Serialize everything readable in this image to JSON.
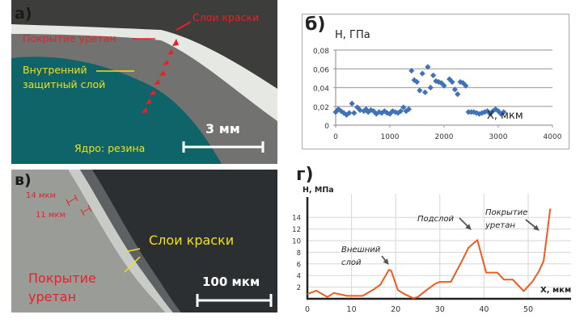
{
  "panels": {
    "a": {
      "letter": "а)",
      "labels": {
        "paint_layers": "Слои краски",
        "urethane_coating": "Покрытие уретан",
        "inner_layer_1": "Внутренний",
        "inner_layer_2": "защитный слой",
        "core": "Ядро: резина"
      },
      "scale_bar": "3 мм",
      "colors": {
        "background": "#3d3d3b",
        "core": "#0f6468",
        "inner_layer": "#6f706e",
        "coating": "#e9ebe6",
        "red_label": "#e8202a",
        "yellow_label": "#f1e21a"
      }
    },
    "c": {
      "letter": "в)",
      "labels": {
        "thickness_1": "14 мкм",
        "thickness_2": "11 мкм",
        "paint_layers": "Слои краски",
        "urethane_1": "Покрытие",
        "urethane_2": "уретан"
      },
      "scale_bar": "100 мкм"
    }
  },
  "chart_data": [
    {
      "id": "б",
      "type": "scatter",
      "title": "б)",
      "ylabel": "H, ГПа",
      "xlabel": "X, мкм",
      "xlim": [
        0,
        4000
      ],
      "ylim": [
        0,
        0.08
      ],
      "x_ticks": [
        "0",
        "1000",
        "2000",
        "3000",
        "4000"
      ],
      "y_ticks": [
        "0",
        "0,02",
        "0,04",
        "0,06",
        "0,08"
      ],
      "grid": "horizontal",
      "marker": "diamond",
      "color": "#3f72b6",
      "points": [
        [
          0,
          0.014
        ],
        [
          50,
          0.017
        ],
        [
          100,
          0.015
        ],
        [
          150,
          0.013
        ],
        [
          200,
          0.011
        ],
        [
          250,
          0.013
        ],
        [
          300,
          0.023
        ],
        [
          340,
          0.013
        ],
        [
          400,
          0.019
        ],
        [
          450,
          0.016
        ],
        [
          520,
          0.015
        ],
        [
          560,
          0.017
        ],
        [
          600,
          0.014
        ],
        [
          650,
          0.016
        ],
        [
          700,
          0.015
        ],
        [
          750,
          0.012
        ],
        [
          800,
          0.014
        ],
        [
          850,
          0.013
        ],
        [
          900,
          0.015
        ],
        [
          950,
          0.013
        ],
        [
          1000,
          0.012
        ],
        [
          1050,
          0.015
        ],
        [
          1100,
          0.014
        ],
        [
          1150,
          0.013
        ],
        [
          1200,
          0.015
        ],
        [
          1250,
          0.019
        ],
        [
          1300,
          0.015
        ],
        [
          1350,
          0.017
        ],
        [
          1400,
          0.058
        ],
        [
          1450,
          0.048
        ],
        [
          1500,
          0.046
        ],
        [
          1550,
          0.037
        ],
        [
          1600,
          0.055
        ],
        [
          1650,
          0.035
        ],
        [
          1700,
          0.062
        ],
        [
          1750,
          0.04
        ],
        [
          1800,
          0.053
        ],
        [
          1850,
          0.047
        ],
        [
          1900,
          0.046
        ],
        [
          1950,
          0.045
        ],
        [
          2000,
          0.042
        ],
        [
          2100,
          0.049
        ],
        [
          2150,
          0.046
        ],
        [
          2200,
          0.038
        ],
        [
          2250,
          0.033
        ],
        [
          2300,
          0.046
        ],
        [
          2350,
          0.045
        ],
        [
          2400,
          0.042
        ],
        [
          2450,
          0.014
        ],
        [
          2500,
          0.014
        ],
        [
          2550,
          0.014
        ],
        [
          2600,
          0.013
        ],
        [
          2650,
          0.012
        ],
        [
          2700,
          0.013
        ],
        [
          2750,
          0.014
        ],
        [
          2800,
          0.015
        ],
        [
          2850,
          0.012
        ],
        [
          2900,
          0.015
        ],
        [
          2950,
          0.017
        ],
        [
          3000,
          0.015
        ],
        [
          3050,
          0.012
        ],
        [
          3100,
          0.014
        ]
      ]
    },
    {
      "id": "г",
      "type": "line",
      "title": "г)",
      "ylabel": "H, МПа",
      "xlabel": "X, мкм",
      "xlim": [
        0,
        60
      ],
      "ylim": [
        0,
        15.5
      ],
      "x_ticks": [
        "0",
        "10",
        "20",
        "30",
        "40",
        "50"
      ],
      "y_ticks": [
        "2",
        "4",
        "6",
        "8",
        "10",
        "12",
        "14"
      ],
      "grid": "both",
      "color": "#ef5a1e",
      "points": [
        [
          0,
          0.8
        ],
        [
          2,
          1.4
        ],
        [
          4.5,
          0.3
        ],
        [
          6,
          1.0
        ],
        [
          9,
          0.5
        ],
        [
          12.5,
          0.5
        ],
        [
          15,
          1.6
        ],
        [
          16.5,
          2.4
        ],
        [
          18.5,
          5.0
        ],
        [
          19,
          4.8
        ],
        [
          20.5,
          1.5
        ],
        [
          22,
          0.8
        ],
        [
          24,
          0.1
        ],
        [
          25,
          0.3
        ],
        [
          27,
          1.5
        ],
        [
          29,
          2.6
        ],
        [
          30,
          2.9
        ],
        [
          32.5,
          2.9
        ],
        [
          35,
          6.5
        ],
        [
          36.5,
          8.8
        ],
        [
          38.5,
          10.1
        ],
        [
          40.5,
          4.5
        ],
        [
          43,
          4.5
        ],
        [
          44.5,
          3.3
        ],
        [
          46.5,
          3.3
        ],
        [
          49,
          1.3
        ],
        [
          51,
          3.0
        ],
        [
          52.5,
          4.8
        ],
        [
          53.5,
          6.5
        ],
        [
          55,
          15.5
        ]
      ],
      "annotations": [
        {
          "text_1": "Внешний",
          "text_2": "слой",
          "x": 18.5,
          "y": 5.0
        },
        {
          "text_1": "Подслой",
          "text_2": "",
          "x": 38.5,
          "y": 10.1
        },
        {
          "text_1": "Покрытие",
          "text_2": "уретан",
          "x": 53.5,
          "y": 10.5
        }
      ]
    }
  ]
}
